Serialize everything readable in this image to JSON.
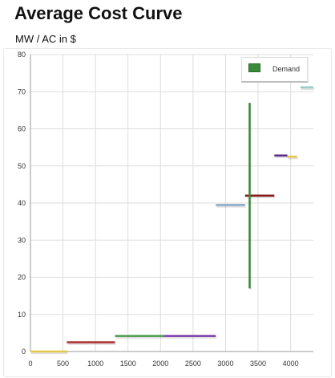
{
  "header": {
    "title": "Average Cost Curve",
    "subtitle": "MW / AC in $"
  },
  "chart_data": {
    "type": "line",
    "title": "Average Cost Curve",
    "subtitle": "MW / AC in $",
    "xlim": [
      0,
      4350
    ],
    "ylim": [
      0,
      80
    ],
    "x_ticks": [
      "0",
      "500",
      "1000",
      "1500",
      "2000",
      "2500",
      "3000",
      "3500",
      "4000"
    ],
    "y_ticks": [
      "0",
      "10",
      "20",
      "30",
      "40",
      "50",
      "60",
      "70",
      "80"
    ],
    "grid": true,
    "legend_position": "top-right",
    "legend": [
      {
        "name": "Demand",
        "color": "#3a8a3a"
      }
    ],
    "segments": [
      {
        "x0": 0,
        "x1": 560,
        "y": 0,
        "color": "#e6c84a"
      },
      {
        "x0": 560,
        "x1": 1300,
        "y": 2.5,
        "color": "#b03030"
      },
      {
        "x0": 1300,
        "x1": 2050,
        "y": 4.2,
        "color": "#4a9a4a"
      },
      {
        "x0": 2050,
        "x1": 2850,
        "y": 4.2,
        "color": "#7a3aaa"
      },
      {
        "x0": 2850,
        "x1": 3300,
        "y": 39.5,
        "color": "#8aaac8"
      },
      {
        "x0": 3300,
        "x1": 3750,
        "y": 42,
        "color": "#8a1a1a"
      },
      {
        "x0": 3750,
        "x1": 3950,
        "y": 52.8,
        "color": "#5a2a8a"
      },
      {
        "x0": 3950,
        "x1": 4100,
        "y": 52.5,
        "color": "#e6c84a"
      },
      {
        "x0": 4150,
        "x1": 4350,
        "y": 71.2,
        "color": "#9ad0c8"
      }
    ],
    "demand": {
      "name": "Demand",
      "x": 3370,
      "y0": 17,
      "y1": 67,
      "color": "#3a8a3a"
    }
  }
}
